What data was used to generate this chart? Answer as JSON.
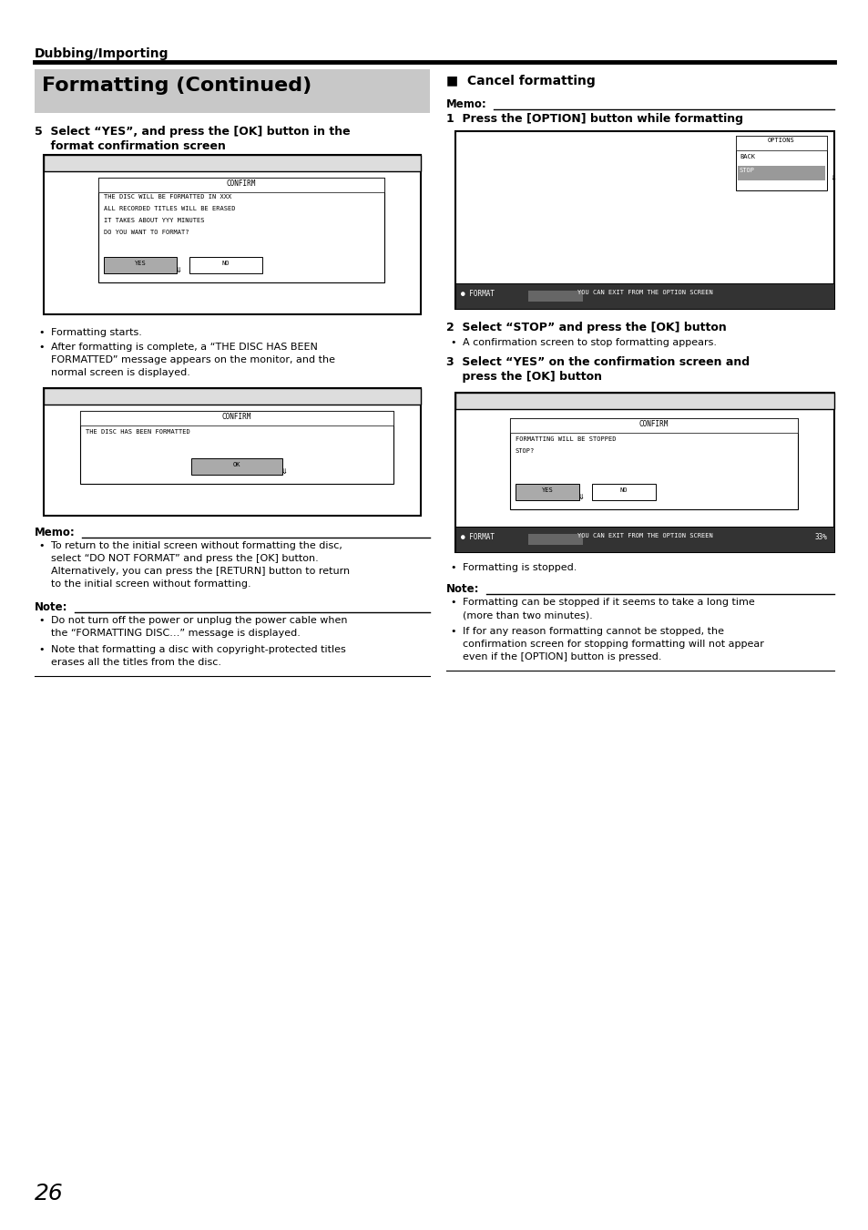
{
  "page_number": "26",
  "section_header": "Dubbing/Importing",
  "title": "Formatting (Continued)",
  "title_bg": "#c8c8c8",
  "bg_color": "#ffffff",
  "step5_heading_1": "5  Select “YES”, and press the [OK] button in the",
  "step5_heading_2": "    format confirmation screen",
  "screen1_lines": [
    "THE DISC WILL BE FORMATTED IN XXX",
    "ALL RECORDED TITLES WILL BE ERASED",
    "IT TAKES ABOUT YYY MINUTES",
    "DO YOU WANT TO FORMAT?"
  ],
  "bullet1a": "Formatting starts.",
  "bullet1b_1": "After formatting is complete, a “THE DISC HAS BEEN",
  "bullet1b_2": "FORMATTED” message appears on the monitor, and the",
  "bullet1b_3": "normal screen is displayed.",
  "screen2_line": "THE DISC HAS BEEN FORMATTED",
  "memo_left_bullets": [
    "To return to the initial screen without formatting the disc,",
    "select “DO NOT FORMAT” and press the [OK] button.",
    "Alternatively, you can press the [RETURN] button to return",
    "to the initial screen without formatting."
  ],
  "note_left_bullets_1": [
    "Do not turn off the power or unplug the power cable when",
    "the “FORMATTING DISC…” message is displayed."
  ],
  "note_left_bullets_2": [
    "Note that formatting a disc with copyright-protected titles",
    "erases all the titles from the disc."
  ],
  "cancel_heading": "■  Cancel formatting",
  "step1_right_1": "1  Press the [OPTION] button while formatting",
  "step2_right": "2  Select “STOP” and press the [OK] button",
  "bullet2a": "A confirmation screen to stop formatting appears.",
  "step3_right_1": "3  Select “YES” on the confirmation screen and",
  "step3_right_2": "    press the [OK] button",
  "screen4_lines": [
    "FORMATTING WILL BE STOPPED",
    "STOP?"
  ],
  "bullet3a": "Formatting is stopped.",
  "note_right_bullets_1": [
    "Formatting can be stopped if it seems to take a long time",
    "(more than two minutes)."
  ],
  "note_right_bullets_2": [
    "If for any reason formatting cannot be stopped, the",
    "confirmation screen for stopping formatting will not appear",
    "even if the [OPTION] button is pressed."
  ]
}
